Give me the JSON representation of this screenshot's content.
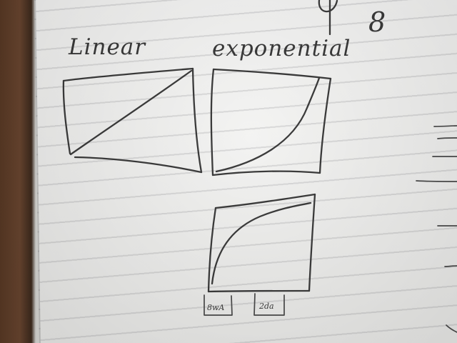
{
  "labels": {
    "left_chart": "Linear",
    "right_chart": "exponential",
    "tick_left": "8wA",
    "tick_right": "2da",
    "corner_number": "8"
  },
  "colors": {
    "ink": "#3c3c3c",
    "paper": "#f5f5f3",
    "desk": "#5a3a25"
  }
}
